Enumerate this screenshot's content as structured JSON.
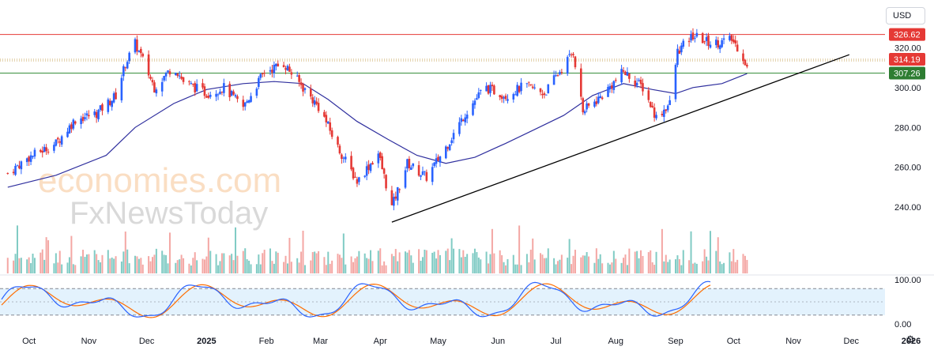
{
  "toolbar": {
    "currency": "USD",
    "settings_icon": "gear-icon"
  },
  "watermark": {
    "line1": "economies.com",
    "line2": "FxNewsToday"
  },
  "colors": {
    "up": "#2962ff",
    "down": "#e53935",
    "resistance": "#e53935",
    "support": "#388e3c",
    "middle": "#c8a860",
    "ma": "#2f2f9e",
    "trendline": "#000000",
    "vol_up": "#80cbc4",
    "vol_down": "#f4a7a4",
    "stoch_k": "#2962ff",
    "stoch_d": "#ff6d00",
    "stoch_band": "#e3f2fd",
    "badge_resistance": "#e53935",
    "badge_middle": "#e53935",
    "badge_support": "#2e7d32"
  },
  "chart_data": {
    "type": "candlestick",
    "x_labels": [
      "Oct",
      "Nov",
      "Dec",
      "2025",
      "Feb",
      "Mar",
      "Apr",
      "May",
      "Jun",
      "Jul",
      "Aug",
      "Sep",
      "Oct",
      "Nov",
      "Dec",
      "2026"
    ],
    "y_ticks": [
      "320.00",
      "300.00",
      "280.00",
      "260.00",
      "240.00"
    ],
    "ylim": [
      225,
      336
    ],
    "levels": [
      {
        "name": "resistance",
        "value": 326.62,
        "label": "326.62"
      },
      {
        "name": "middle",
        "value": 314.19,
        "label": "314.19"
      },
      {
        "name": "support",
        "value": 307.26,
        "label": "307.26"
      }
    ],
    "trendline": {
      "from": {
        "date": "2025-04-07",
        "value": 232.5
      },
      "to": {
        "date": "2025-11-30",
        "value": 316.5
      }
    },
    "moving_average_points": [
      [
        "2024-09-20",
        250
      ],
      [
        "2024-10-15",
        256
      ],
      [
        "2024-11-10",
        266
      ],
      [
        "2024-11-25",
        280
      ],
      [
        "2024-12-15",
        292
      ],
      [
        "2025-01-01",
        299
      ],
      [
        "2025-01-20",
        302
      ],
      [
        "2025-02-05",
        303
      ],
      [
        "2025-02-20",
        302
      ],
      [
        "2025-03-05",
        294
      ],
      [
        "2025-03-20",
        283
      ],
      [
        "2025-04-05",
        274
      ],
      [
        "2025-04-20",
        266
      ],
      [
        "2025-05-05",
        262
      ],
      [
        "2025-05-20",
        265
      ],
      [
        "2025-06-05",
        272
      ],
      [
        "2025-06-20",
        279
      ],
      [
        "2025-07-05",
        286
      ],
      [
        "2025-07-20",
        296
      ],
      [
        "2025-08-05",
        302
      ],
      [
        "2025-08-20",
        299
      ],
      [
        "2025-09-01",
        297
      ],
      [
        "2025-09-10",
        300
      ],
      [
        "2025-09-25",
        302
      ],
      [
        "2025-10-08",
        307
      ]
    ],
    "close_path": [
      [
        "2024-09-20",
        257
      ],
      [
        "2024-10-01",
        265
      ],
      [
        "2024-10-15",
        272
      ],
      [
        "2024-10-25",
        284
      ],
      [
        "2024-11-05",
        287
      ],
      [
        "2024-11-15",
        296
      ],
      [
        "2024-11-20",
        312
      ],
      [
        "2024-11-25",
        322
      ],
      [
        "2024-11-28",
        316
      ],
      [
        "2024-12-05",
        300
      ],
      [
        "2024-12-15",
        311
      ],
      [
        "2024-12-20",
        303
      ],
      [
        "2025-01-01",
        297
      ],
      [
        "2025-01-10",
        300
      ],
      [
        "2025-01-20",
        290
      ],
      [
        "2025-01-31",
        308
      ],
      [
        "2025-02-10",
        312
      ],
      [
        "2025-02-20",
        300
      ],
      [
        "2025-03-01",
        289
      ],
      [
        "2025-03-10",
        270
      ],
      [
        "2025-03-20",
        253
      ],
      [
        "2025-03-31",
        267
      ],
      [
        "2025-04-07",
        240
      ],
      [
        "2025-04-15",
        262
      ],
      [
        "2025-04-25",
        255
      ],
      [
        "2025-05-05",
        270
      ],
      [
        "2025-05-15",
        287
      ],
      [
        "2025-05-25",
        300
      ],
      [
        "2025-06-05",
        296
      ],
      [
        "2025-06-15",
        301
      ],
      [
        "2025-06-25",
        297
      ],
      [
        "2025-07-05",
        311
      ],
      [
        "2025-07-10",
        318
      ],
      [
        "2025-07-15",
        288
      ],
      [
        "2025-07-25",
        296
      ],
      [
        "2025-08-05",
        308
      ],
      [
        "2025-08-15",
        300
      ],
      [
        "2025-08-22",
        285
      ],
      [
        "2025-08-29",
        292
      ],
      [
        "2025-09-02",
        318
      ],
      [
        "2025-09-10",
        326
      ],
      [
        "2025-09-20",
        322
      ],
      [
        "2025-09-30",
        324
      ],
      [
        "2025-10-05",
        318
      ],
      [
        "2025-10-08",
        310
      ]
    ],
    "stochastic_ticks": [
      "100.00",
      "0.00"
    ],
    "stochastic_levels": [
      80,
      50,
      20
    ]
  }
}
